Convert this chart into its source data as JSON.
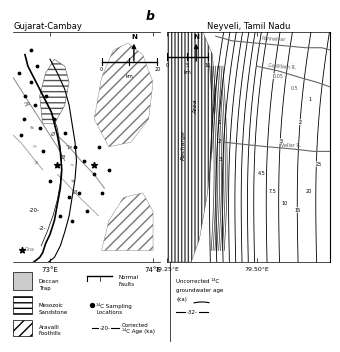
{
  "title_left": "Gujarat-Cambay",
  "title_right": "Neyveli, Tamil Nadu",
  "label_b": "b",
  "bg_color": "#ffffff",
  "xlabel_left1": "73°E",
  "xlabel_left2": "74°E",
  "xlabel_right1": "79.25°E",
  "xlabel_right2": "79.50°E",
  "legend_deccan": "Deccan\nTrap",
  "legend_mesozoic": "Mesozoic\nSandstone",
  "legend_aravalli": "Aravalli\nFoothills",
  "legend_sampling": "¹⁴C Sampling\nLocations",
  "legend_corrected": "Corrected\n¹⁴C Age (ka)",
  "legend_uncorrected": "Uncorrected ¹⁴C\ngroundwater age\n(ka)",
  "contour_age_label": "-20-",
  "text_recharge": "Recharge",
  "text_area": "Area",
  "text_vellar": "Vellar R.",
  "text_godillam": "Godillam R.",
  "text_ponnaiyar": "Ponnaiyar"
}
